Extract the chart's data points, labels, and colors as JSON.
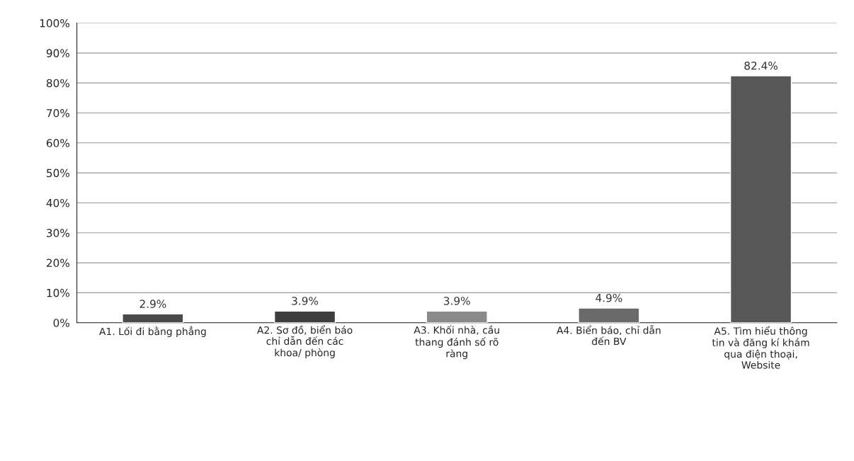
{
  "chart_data": {
    "type": "bar",
    "categories": [
      "A1. Lối đi bằng phẳng",
      "A2. Sơ đồ, biển báo\nchỉ dẫn đến các\nkhoa/ phòng",
      "A3. Khối nhà, cầu\nthang đánh số rõ\nràng",
      "A4. Biển báo, chỉ dẫn\nđến BV",
      "A5. Tìm hiểu thông\ntin và đăng kí khám\nqua điện thoại,\nWebsite"
    ],
    "values": [
      2.9,
      3.9,
      3.9,
      4.9,
      82.4
    ],
    "colors": [
      "#4a4a4a",
      "#3e3e3e",
      "#8a8a8a",
      "#6a6a6a",
      "#575757"
    ],
    "value_labels": [
      "2.9%",
      "3.9%",
      "3.9%",
      "4.9%",
      "82.4%"
    ],
    "ylim": [
      0,
      100
    ],
    "yticks": [
      {
        "value": 0,
        "label": "0%"
      },
      {
        "value": 10,
        "label": "10%"
      },
      {
        "value": 20,
        "label": "20%"
      },
      {
        "value": 30,
        "label": "30%"
      },
      {
        "value": 40,
        "label": "40%"
      },
      {
        "value": 50,
        "label": "50%"
      },
      {
        "value": 60,
        "label": "60%"
      },
      {
        "value": 70,
        "label": "70%"
      },
      {
        "value": 80,
        "label": "80%"
      },
      {
        "value": 90,
        "label": "90%"
      },
      {
        "value": 100,
        "label": "100%"
      }
    ],
    "grid": "y"
  }
}
